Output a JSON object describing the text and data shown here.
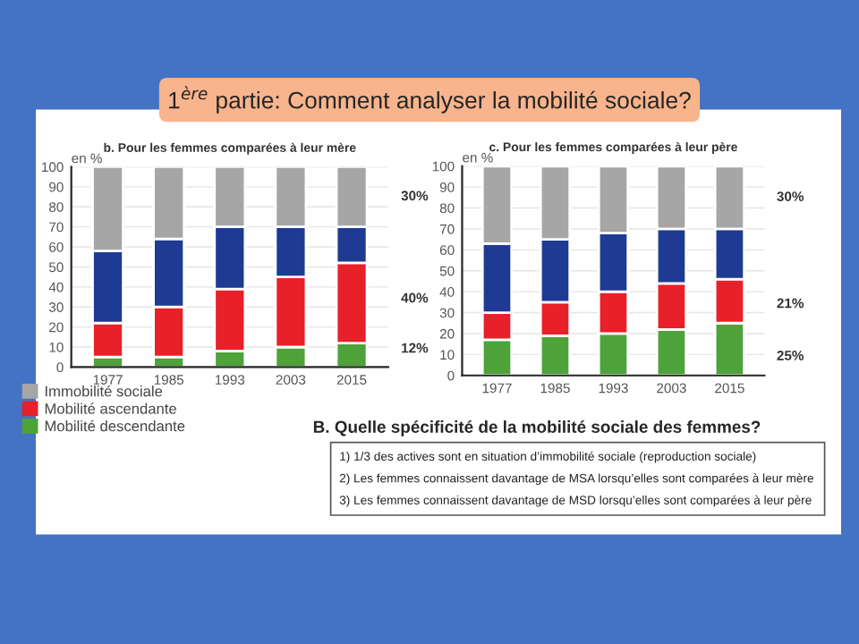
{
  "chart_data": [
    {
      "type": "bar",
      "subtitle": "b. Pour les femmes comparées à leur mère",
      "ylabel": "en %",
      "categories": [
        "1977",
        "1985",
        "1993",
        "2003",
        "2015"
      ],
      "stacked": true,
      "ylim": [
        0,
        100
      ],
      "yticks": [
        0,
        10,
        20,
        30,
        40,
        50,
        60,
        70,
        80,
        90,
        100
      ],
      "grid": "y",
      "legend": "bottom left",
      "series": [
        {
          "name": "Mobilité descendante",
          "color": "#4ea23a",
          "values": [
            5,
            5,
            8,
            10,
            12
          ]
        },
        {
          "name": "Mobilité ascendante",
          "color": "#e8202a",
          "values": [
            17,
            25,
            31,
            35,
            40
          ]
        },
        {
          "color": "#1f3a93",
          "values": [
            36,
            34,
            31,
            25,
            18
          ]
        },
        {
          "name": "Immobilité sociale",
          "color": "#a6a6a6",
          "values": [
            42,
            36,
            30,
            30,
            30
          ]
        }
      ],
      "annotations": [
        "30%",
        "40%",
        "12%"
      ]
    },
    {
      "type": "bar",
      "subtitle": "c. Pour les femmes comparées à leur père",
      "ylabel": "en %",
      "categories": [
        "1977",
        "1985",
        "1993",
        "2003",
        "2015"
      ],
      "stacked": true,
      "ylim": [
        0,
        100
      ],
      "yticks": [
        0,
        10,
        20,
        30,
        40,
        50,
        60,
        70,
        80,
        90,
        100
      ],
      "grid": "y",
      "series": [
        {
          "color": "#4ea23a",
          "values": [
            17,
            19,
            20,
            22,
            25
          ]
        },
        {
          "color": "#e8202a",
          "values": [
            13,
            16,
            20,
            22,
            21
          ]
        },
        {
          "color": "#1f3a93",
          "values": [
            33,
            30,
            28,
            26,
            24
          ]
        },
        {
          "color": "#a6a6a6",
          "values": [
            37,
            35,
            32,
            30,
            30
          ]
        }
      ],
      "annotations": [
        "30%",
        "21%",
        "25%"
      ]
    },
    {
      "type": "other",
      "title": "1$^{ère}$ partie: Comment analyser la mobilité sociale?",
      "subtitle": "B. Quelle spécificité de la mobilité sociale des femmes?",
      "annotations": [
        "1) 1/3 des actives sont en situation d’immobilité sociale (reproduction sociale)",
        "2) Les femmes connaissent davantage de MSA lorsqu’elles sont comparées à leur mère",
        "3) Les femmes connaissent davantage de MSD lorsqu’elles sont comparées à leur père"
      ]
    }
  ]
}
